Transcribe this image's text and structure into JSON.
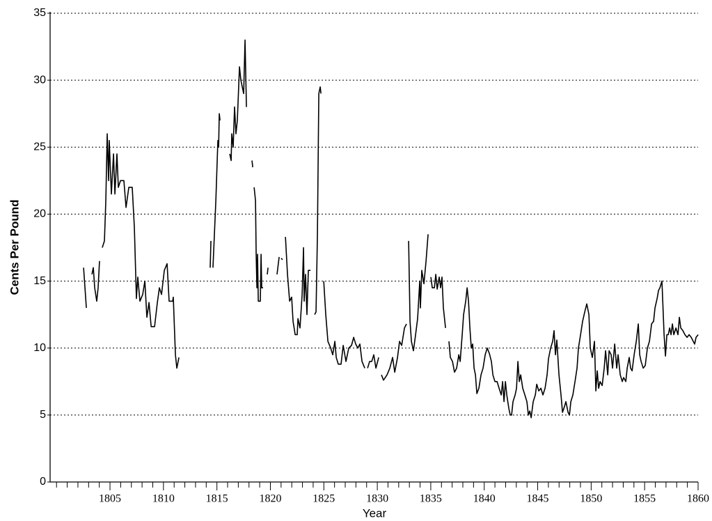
{
  "chart_data": {
    "type": "line",
    "xlabel": "Year",
    "ylabel": "Cents Per Pound",
    "x": [
      1802.53,
      1802.79,
      null,
      1803.31,
      1803.44,
      1803.57,
      1803.76,
      1803.89,
      1804.02,
      null,
      1804.28,
      1804.48,
      1804.61,
      1804.74,
      1804.87,
      1804.93,
      1805.13,
      1805.33,
      1805.46,
      1805.65,
      1805.78,
      1805.98,
      1806.3,
      1806.5,
      1806.76,
      1807.08,
      1807.28,
      1807.47,
      1807.6,
      1807.8,
      1808.06,
      1808.26,
      1808.45,
      1808.65,
      1808.85,
      1809.17,
      1809.43,
      1809.62,
      1809.82,
      1810.08,
      1810.34,
      1810.53,
      1810.86,
      1810.92,
      1811.12,
      1811.25,
      1811.45,
      null,
      1814.37,
      1814.44,
      null,
      1814.63,
      1814.9,
      1815.09,
      1815.16,
      1815.22,
      1815.29,
      null,
      1816.2,
      1816.33,
      1816.39,
      1816.52,
      1816.65,
      1816.78,
      1816.91,
      1817.11,
      1817.24,
      1817.5,
      1817.63,
      1817.76,
      null,
      1818.28,
      1818.35,
      null,
      1818.48,
      1818.61,
      1818.67,
      1818.74,
      1818.8,
      1818.87,
      1819.06,
      1819.13,
      1819.19,
      1819.32,
      null,
      1819.71,
      1819.78,
      null,
      1820.62,
      1820.82,
      null,
      1821.01,
      1821.14,
      null,
      1821.41,
      1821.6,
      1821.8,
      1821.99,
      1822.12,
      1822.32,
      1822.51,
      1822.58,
      1822.77,
      1822.97,
      1823.1,
      1823.16,
      1823.29,
      1823.42,
      1823.55,
      1823.75,
      null,
      1824.14,
      1824.27,
      1824.4,
      1824.53,
      1824.66,
      1824.73,
      null,
      1824.99,
      1825.18,
      1825.38,
      1825.64,
      1825.83,
      1826.03,
      1826.16,
      1826.35,
      1826.61,
      1826.81,
      1827.07,
      1827.33,
      1827.59,
      1827.79,
      1827.98,
      1828.18,
      1828.37,
      1828.57,
      1828.83,
      null,
      1829.09,
      1829.28,
      1829.48,
      1829.67,
      1829.87,
      1830.13,
      null,
      1830.39,
      1830.58,
      1830.91,
      1831.17,
      1831.43,
      1831.63,
      1831.89,
      1832.08,
      1832.28,
      1832.54,
      1832.73,
      null,
      1832.93,
      1833.06,
      1833.19,
      1833.38,
      1833.58,
      1833.77,
      1833.97,
      1834.03,
      1834.16,
      1834.36,
      1834.56,
      1834.75,
      null,
      1835.01,
      1835.14,
      1835.34,
      1835.47,
      1835.6,
      1835.79,
      1835.92,
      1836.05,
      1836.18,
      1836.38,
      null,
      1836.7,
      1836.83,
      1837.03,
      1837.22,
      1837.42,
      1837.62,
      1837.75,
      1837.94,
      1838.07,
      1838.27,
      1838.4,
      1838.53,
      1838.66,
      1838.79,
      1838.92,
      1839.05,
      1839.18,
      1839.31,
      1839.5,
      1839.7,
      1839.89,
      1840.09,
      1840.28,
      1840.48,
      1840.67,
      1840.81,
      1841.0,
      1841.2,
      1841.39,
      1841.59,
      1841.72,
      1841.85,
      1841.98,
      1842.11,
      1842.3,
      1842.43,
      1842.56,
      1842.69,
      1842.89,
      1843.02,
      1843.15,
      1843.28,
      1843.41,
      1843.6,
      1843.8,
      1843.99,
      1844.13,
      1844.26,
      1844.39,
      1844.58,
      1844.78,
      1844.91,
      1845.1,
      1845.3,
      1845.49,
      1845.69,
      1845.88,
      1846.01,
      1846.21,
      1846.4,
      1846.53,
      1846.66,
      1846.79,
      1846.99,
      1847.18,
      1847.32,
      1847.45,
      1847.64,
      1847.84,
      1847.97,
      1848.1,
      1848.29,
      1848.49,
      1848.68,
      1848.81,
      1849.01,
      1849.2,
      1849.4,
      1849.59,
      1849.79,
      1849.92,
      1850.11,
      1850.31,
      1850.44,
      1850.57,
      1850.7,
      1850.83,
      1851.03,
      1851.22,
      1851.35,
      1851.55,
      1851.68,
      1851.87,
      1852.0,
      1852.2,
      1852.39,
      1852.52,
      1852.72,
      1852.91,
      1853.04,
      1853.24,
      1853.37,
      1853.56,
      1853.69,
      1853.83,
      1854.02,
      1854.22,
      1854.41,
      1854.54,
      1854.67,
      1854.87,
      1855.06,
      1855.26,
      1855.45,
      1855.65,
      1855.84,
      1855.97,
      1856.17,
      1856.3,
      1856.43,
      1856.62,
      1856.82,
      1856.95,
      1857.08,
      1857.21,
      1857.34,
      1857.47,
      1857.6,
      1857.73,
      1857.93,
      1858.12,
      1858.25,
      1858.38,
      1858.58,
      1858.77,
      1858.97,
      1859.16,
      1859.36,
      1859.55,
      1859.68,
      1859.81,
      1860.01
    ],
    "values": [
      16,
      13,
      null,
      15.5,
      16,
      14.5,
      13.5,
      14.5,
      16.5,
      null,
      17.5,
      18,
      21,
      26,
      22.5,
      25.5,
      21.5,
      24.5,
      21.5,
      24.5,
      22,
      22.5,
      22.5,
      20.5,
      22,
      22,
      19,
      13.7,
      15.3,
      13.5,
      14,
      15,
      12.3,
      13.4,
      11.6,
      11.6,
      13.4,
      14.5,
      14,
      15.8,
      16.3,
      13.5,
      13.5,
      13.8,
      9.5,
      8.5,
      9.3,
      null,
      16,
      18,
      null,
      16,
      21,
      25.5,
      25,
      27.5,
      27,
      null,
      24.5,
      24,
      26,
      25,
      28,
      26,
      27,
      31,
      30,
      29,
      33,
      28,
      null,
      24,
      23.5,
      null,
      22,
      21,
      17,
      14.5,
      17,
      13.5,
      13.5,
      17,
      14.5,
      14.5,
      null,
      15.5,
      16,
      null,
      15.5,
      16.8,
      null,
      16.7,
      16.6,
      null,
      18.3,
      15.5,
      13.5,
      13.8,
      12,
      11,
      11,
      12.2,
      11.5,
      14,
      17.5,
      13.5,
      15.5,
      12.5,
      15.8,
      15.8,
      null,
      12.5,
      12.7,
      18.5,
      29,
      29.5,
      29,
      null,
      15,
      12.5,
      10.5,
      10,
      9.5,
      10.5,
      9.3,
      8.8,
      8.8,
      10.2,
      9,
      10,
      10.2,
      10.8,
      10.3,
      10,
      10.3,
      9,
      8.5,
      null,
      8.5,
      9,
      9,
      9.5,
      8.5,
      9.3,
      null,
      8,
      7.6,
      8,
      8.5,
      9.3,
      8.2,
      9.3,
      10.5,
      10.2,
      11.5,
      11.8,
      null,
      18,
      12,
      10.5,
      9.8,
      11,
      12.2,
      15,
      13,
      15.8,
      14.8,
      16.5,
      18.5,
      null,
      15.3,
      14.5,
      14.5,
      15.5,
      14.4,
      15.3,
      14.5,
      15.3,
      13,
      11.5,
      null,
      10.5,
      9.3,
      9,
      8.2,
      8.5,
      9.5,
      9,
      11,
      12.5,
      13.5,
      14.5,
      13.5,
      11.5,
      10,
      10.3,
      8.5,
      8,
      6.6,
      7,
      8,
      8.5,
      9.5,
      10,
      9.6,
      9,
      8,
      7.5,
      7.5,
      7,
      6.5,
      7.5,
      6,
      7.5,
      6.5,
      5.5,
      5,
      5,
      6,
      6.5,
      7,
      9,
      7.5,
      8,
      7,
      6.5,
      6,
      5,
      5.3,
      4.8,
      6,
      6.5,
      7.3,
      6.8,
      7,
      6.5,
      7,
      8,
      9.2,
      10,
      10.5,
      11.3,
      9.5,
      10.6,
      8,
      6.5,
      5.2,
      5.5,
      6,
      5.2,
      5,
      6,
      6.5,
      7.5,
      8.5,
      10,
      11,
      12,
      12.7,
      13.3,
      12.5,
      10,
      9.3,
      10.5,
      6.8,
      8.3,
      7,
      7.5,
      7.2,
      8.5,
      9.8,
      8,
      9.8,
      9.5,
      8.5,
      10.3,
      8.5,
      9.5,
      8,
      7.5,
      7.8,
      7.5,
      8.5,
      9.3,
      8.5,
      8.3,
      9.5,
      10.5,
      11.8,
      9.5,
      9,
      8.5,
      8.7,
      10,
      10.5,
      11.8,
      12,
      13,
      13.7,
      14.3,
      14.5,
      15,
      11,
      9.4,
      11,
      11,
      11.5,
      11,
      11.8,
      11,
      11.5,
      11,
      12.3,
      11.5,
      11.3,
      11,
      10.8,
      11,
      10.8,
      10.5,
      10.3,
      10.8,
      11
    ],
    "color": "#000000",
    "xlim": [
      1799.4,
      1860
    ],
    "xticks": [
      1805,
      1810,
      1815,
      1820,
      1825,
      1830,
      1835,
      1840,
      1845,
      1850,
      1855,
      1860
    ],
    "xminorticks": [
      1800,
      1801,
      1802,
      1803,
      1804,
      1806,
      1807,
      1808,
      1809,
      1811,
      1812,
      1813,
      1814,
      1816,
      1817,
      1818,
      1819,
      1821,
      1822,
      1823,
      1824,
      1826,
      1827,
      1828,
      1829,
      1831,
      1832,
      1833,
      1834,
      1836,
      1837,
      1838,
      1839,
      1841,
      1842,
      1843,
      1844,
      1846,
      1847,
      1848,
      1849,
      1851,
      1852,
      1853,
      1854,
      1856,
      1857,
      1858,
      1859
    ],
    "ylim": [
      0,
      35
    ],
    "yticks": [
      0,
      5,
      10,
      15,
      20,
      25,
      30,
      35
    ],
    "grid": true
  }
}
